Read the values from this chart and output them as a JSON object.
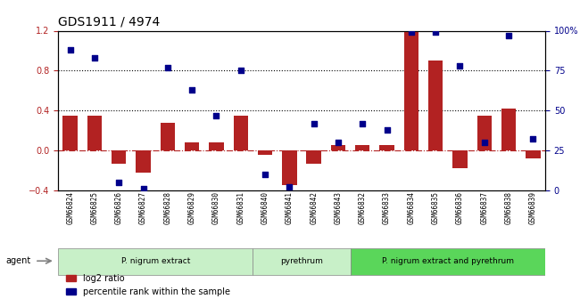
{
  "title": "GDS1911 / 4974",
  "samples": [
    "GSM66824",
    "GSM66825",
    "GSM66826",
    "GSM66827",
    "GSM66828",
    "GSM66829",
    "GSM66830",
    "GSM66831",
    "GSM66840",
    "GSM66841",
    "GSM66842",
    "GSM66843",
    "GSM66832",
    "GSM66833",
    "GSM66834",
    "GSM66835",
    "GSM66836",
    "GSM66837",
    "GSM66838",
    "GSM66839"
  ],
  "log2_ratio": [
    0.35,
    0.35,
    -0.13,
    -0.22,
    0.28,
    0.08,
    0.08,
    0.35,
    -0.04,
    -0.35,
    -0.13,
    0.05,
    0.05,
    0.05,
    1.2,
    0.9,
    -0.18,
    0.35,
    0.42,
    -0.08
  ],
  "percentile_rank": [
    88,
    83,
    5,
    1,
    77,
    63,
    47,
    75,
    10,
    2,
    42,
    30,
    42,
    38,
    99,
    99,
    78,
    30,
    97,
    32
  ],
  "groups": [
    {
      "label": "P. nigrum extract",
      "start": 0,
      "end": 7,
      "color": "#90ee90"
    },
    {
      "label": "pyrethrum",
      "start": 8,
      "end": 11,
      "color": "#90ee90"
    },
    {
      "label": "P. nigrum extract and pyrethrum",
      "start": 12,
      "end": 19,
      "color": "#32cd32"
    }
  ],
  "bar_color": "#b22222",
  "dot_color": "#00008b",
  "left_ylim": [
    -0.4,
    1.2
  ],
  "right_ylim": [
    0,
    100
  ],
  "left_yticks": [
    -0.4,
    0.0,
    0.4,
    0.8,
    1.2
  ],
  "right_yticks": [
    0,
    25,
    50,
    75,
    100
  ],
  "hline_values": [
    0.4,
    0.8
  ],
  "zero_line": 0.0,
  "bar_width": 0.6
}
